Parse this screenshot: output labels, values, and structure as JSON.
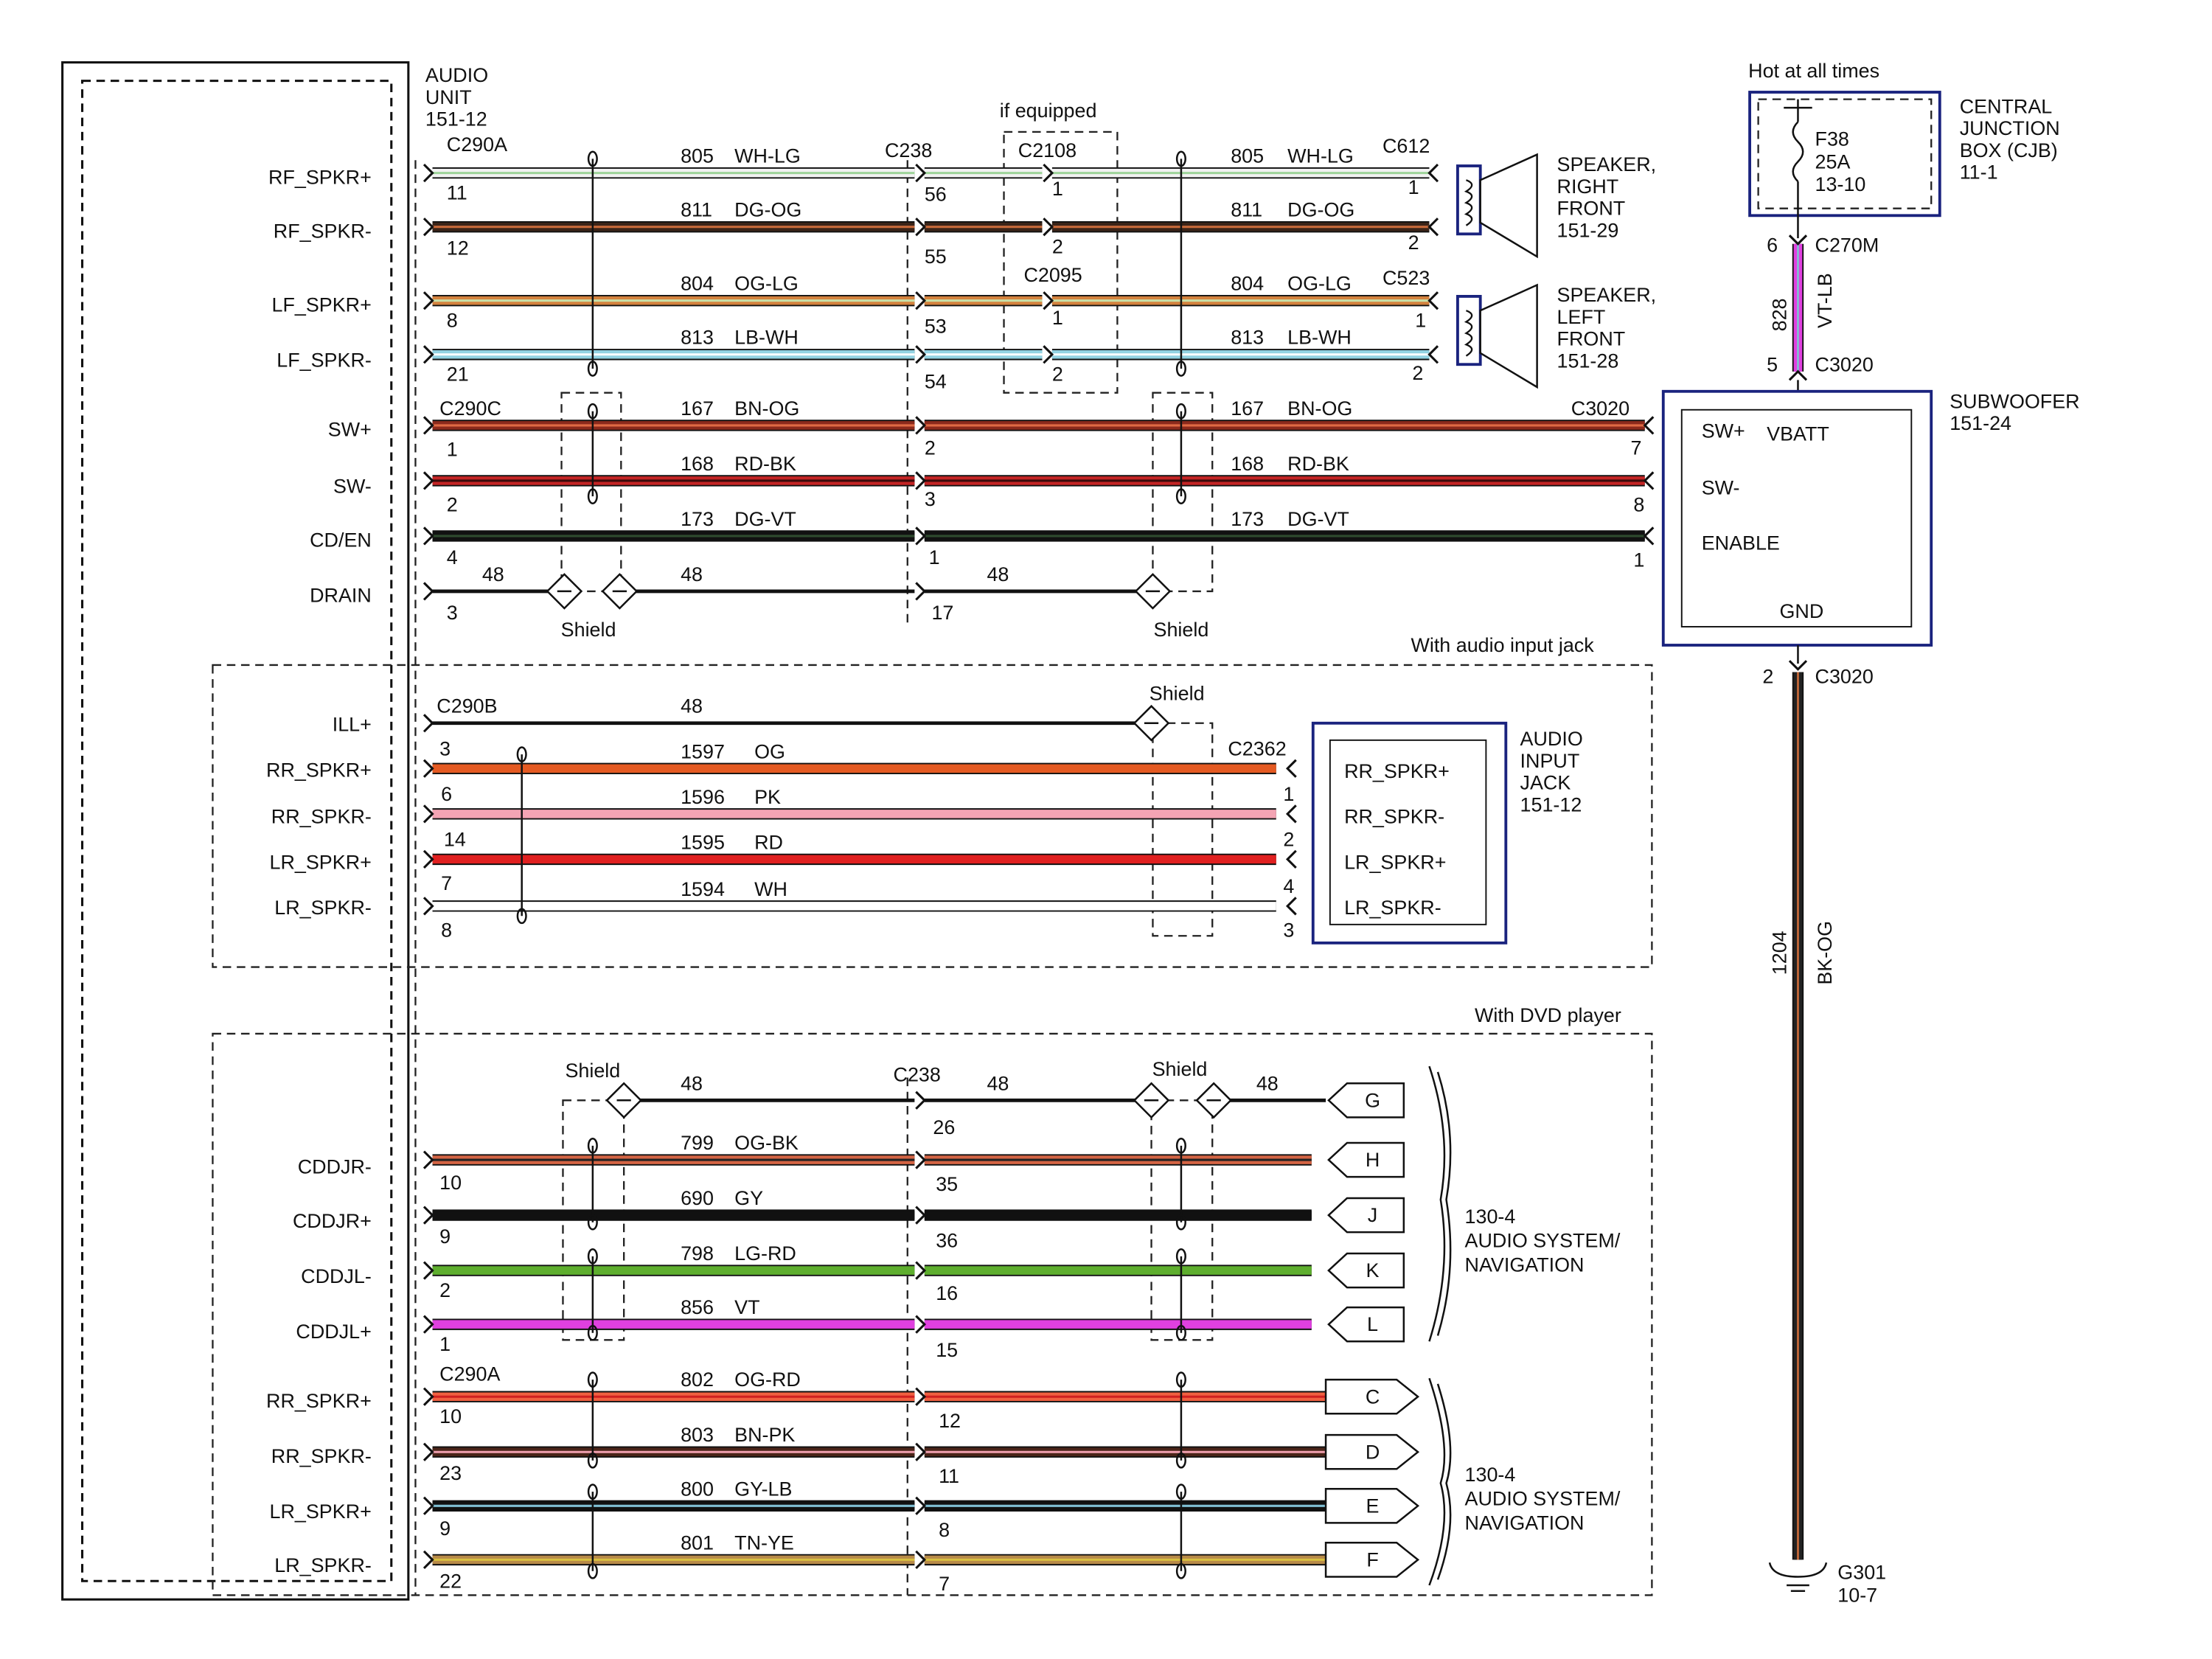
{
  "audio_unit": {
    "name": [
      "AUDIO",
      "UNIT",
      "151-12"
    ],
    "pins": [
      "RF_SPKR+",
      "RF_SPKR-",
      "LF_SPKR+",
      "LF_SPKR-",
      "SW+",
      "SW-",
      "CD/EN",
      "DRAIN",
      "ILL+",
      "RR_SPKR+",
      "RR_SPKR-",
      "LR_SPKR+",
      "LR_SPKR-",
      "CDDJR-",
      "CDDJR+",
      "CDDJL-",
      "CDDJL+",
      "RR_SPKR+",
      "RR_SPKR-",
      "LR_SPKR+",
      "LR_SPKR-"
    ]
  },
  "wires": [
    {
      "labels": [
        "805",
        "WH-LG",
        "805",
        "WH-LG"
      ],
      "pins": [
        "11",
        "56",
        "1",
        "1"
      ]
    },
    {
      "labels": [
        "811",
        "DG-OG",
        "811",
        "DG-OG"
      ],
      "pins": [
        "12",
        "55",
        "2",
        "2"
      ]
    },
    {
      "labels": [
        "804",
        "OG-LG",
        "804",
        "OG-LG"
      ],
      "pins": [
        "8",
        "53",
        "1",
        "1"
      ]
    },
    {
      "labels": [
        "813",
        "LB-WH",
        "813",
        "LB-WH"
      ],
      "pins": [
        "21",
        "54",
        "2",
        "2"
      ]
    },
    {
      "labels": [
        "167",
        "BN-OG",
        "167",
        "BN-OG"
      ],
      "pins": [
        "1",
        "2",
        "7"
      ]
    },
    {
      "labels": [
        "168",
        "RD-BK",
        "168",
        "RD-BK"
      ],
      "pins": [
        "2",
        "3",
        "8"
      ]
    },
    {
      "labels": [
        "173",
        "DG-VT",
        "173",
        "DG-VT"
      ],
      "pins": [
        "4",
        "1",
        "1"
      ]
    },
    {
      "labels": [
        "48",
        "48",
        "48"
      ],
      "pins": [
        "3",
        "17"
      ]
    },
    {
      "labels": [
        "48"
      ],
      "pins": [
        "3"
      ]
    },
    {
      "labels": [
        "1597",
        "OG"
      ],
      "pins": [
        "6",
        "1"
      ]
    },
    {
      "labels": [
        "1596",
        "PK"
      ],
      "pins": [
        "14",
        "2"
      ]
    },
    {
      "labels": [
        "1595",
        "RD"
      ],
      "pins": [
        "7",
        "4"
      ]
    },
    {
      "labels": [
        "1594",
        "WH"
      ],
      "pins": [
        "8",
        "3"
      ]
    },
    {
      "labels": [
        "48",
        "48",
        "48"
      ],
      "pins": [
        "26"
      ]
    },
    {
      "labels": [
        "799",
        "OG-BK"
      ],
      "pins": [
        "10",
        "35"
      ]
    },
    {
      "labels": [
        "690",
        "GY"
      ],
      "pins": [
        "9",
        "36"
      ]
    },
    {
      "labels": [
        "798",
        "LG-RD"
      ],
      "pins": [
        "2",
        "16"
      ]
    },
    {
      "labels": [
        "856",
        "VT"
      ],
      "pins": [
        "1",
        "15"
      ]
    },
    {
      "labels": [
        "802",
        "OG-RD"
      ],
      "pins": [
        "10",
        "12"
      ]
    },
    {
      "labels": [
        "803",
        "BN-PK"
      ],
      "pins": [
        "23",
        "11"
      ]
    },
    {
      "labels": [
        "800",
        "GY-LB"
      ],
      "pins": [
        "9",
        "8"
      ]
    },
    {
      "labels": [
        "801",
        "TN-YE"
      ],
      "pins": [
        "22",
        "7"
      ]
    }
  ],
  "connectors": [
    "C290A",
    "C238",
    "C2108",
    "C612",
    "C2095",
    "C523",
    "C290C",
    "C3020",
    "C290B",
    "C2362",
    "C238",
    "C290A",
    "C270M",
    "C3020",
    "C3020"
  ],
  "plugs": [
    "G",
    "H",
    "J",
    "K",
    "L",
    "C",
    "D",
    "E",
    "F"
  ],
  "shields": [
    "Shield",
    "Shield",
    "Shield",
    "Shield",
    "Shield"
  ],
  "notes": {
    "if_equipped": "if equipped",
    "audio_jack_option": "With audio input jack",
    "dvd_option": "With DVD player"
  },
  "speakers": [
    {
      "name": [
        "SPEAKER,",
        "RIGHT",
        "FRONT",
        "151-29"
      ]
    },
    {
      "name": [
        "SPEAKER,",
        "LEFT",
        "FRONT",
        "151-28"
      ]
    }
  ],
  "audio_input_jack": {
    "name": [
      "AUDIO",
      "INPUT",
      "JACK",
      "151-12"
    ],
    "pins": [
      "RR_SPKR+",
      "RR_SPKR-",
      "LR_SPKR+",
      "LR_SPKR-"
    ]
  },
  "audio_systems": [
    [
      "130-4",
      "AUDIO SYSTEM/",
      "NAVIGATION"
    ],
    [
      "130-4",
      "AUDIO SYSTEM/",
      "NAVIGATION"
    ]
  ],
  "cjb": {
    "note": "Hot at all times",
    "fuse": [
      "F38",
      "25A",
      "13-10"
    ],
    "name": [
      "CENTRAL",
      "JUNCTION",
      "BOX (CJB)",
      "11-1"
    ]
  },
  "subwoofer": {
    "name": [
      "SUBWOOFER",
      "151-24"
    ],
    "pins": [
      "SW+",
      "VBATT",
      "SW-",
      "ENABLE",
      "GND"
    ]
  },
  "power": {
    "pins": [
      "6",
      "5",
      "2"
    ],
    "labels": [
      "828",
      "VT-LB",
      "1204",
      "BK-OG"
    ],
    "ground": [
      "G301",
      "10-7"
    ]
  }
}
